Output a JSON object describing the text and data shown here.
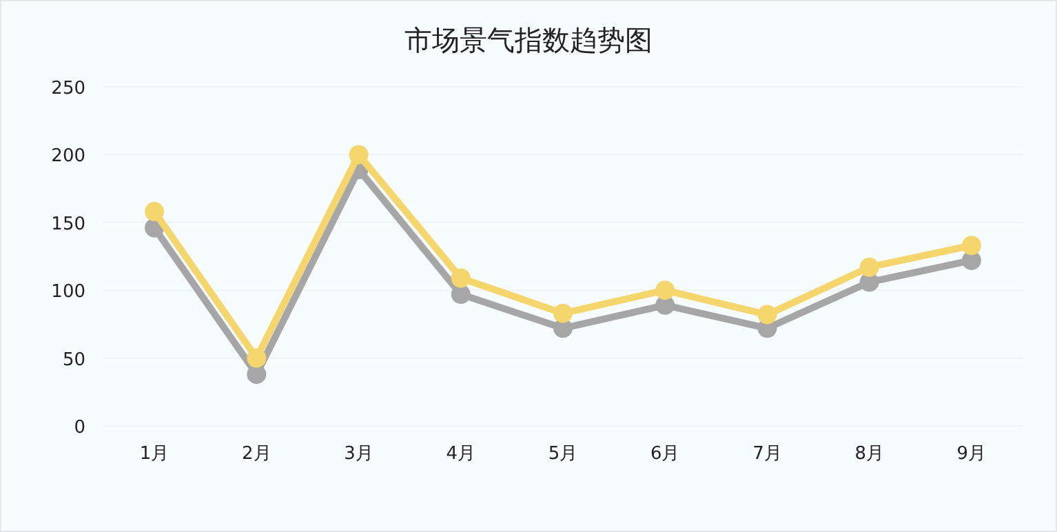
{
  "chart_data": {
    "type": "line",
    "title": "市场景气指数趋势图",
    "categories": [
      "1月",
      "2月",
      "3月",
      "4月",
      "5月",
      "6月",
      "7月",
      "8月",
      "9月"
    ],
    "series": [
      {
        "color": "#a6a6a6",
        "values": [
          146,
          38,
          189,
          97,
          72,
          89,
          72,
          106,
          122
        ]
      },
      {
        "color": "#f5d66c",
        "values": [
          158,
          50,
          200,
          109,
          83,
          100,
          82,
          117,
          133
        ]
      }
    ],
    "ylim": [
      0,
      250
    ],
    "yticks": [
      0,
      50,
      100,
      150,
      200,
      250
    ],
    "grid": "y",
    "marker": "circle",
    "line_style": "solid"
  }
}
